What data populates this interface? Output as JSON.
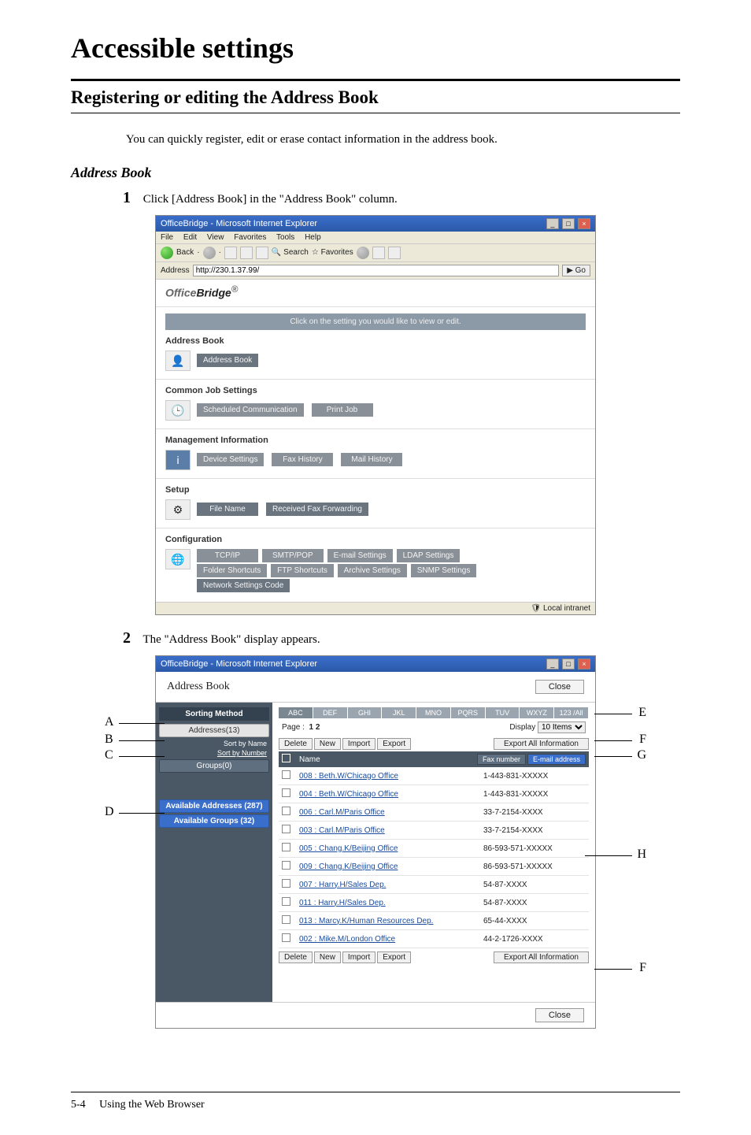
{
  "page": {
    "title": "Accessible settings",
    "subtitle": "Registering or editing the Address Book",
    "intro": "You can quickly register, edit or erase contact information in the address book.",
    "sidehead": "Address Book",
    "step1": "Click [Address Book] in the \"Address Book\" column.",
    "step2": "The \"Address Book\" display appears.",
    "footer_left": "5-4",
    "footer_right": "Using the Web Browser"
  },
  "callouts": {
    "A": "A",
    "B": "B",
    "C": "C",
    "D": "D",
    "E": "E",
    "F": "F",
    "G": "G",
    "H": "H"
  },
  "ss1": {
    "titlebar": "OfficeBridge - Microsoft Internet Explorer",
    "menus": [
      "File",
      "Edit",
      "View",
      "Favorites",
      "Tools",
      "Help"
    ],
    "toolbar": {
      "back": "Back",
      "search": "Search",
      "favorites": "Favorites"
    },
    "address_label": "Address",
    "address_value": "http://230.1.37.99/",
    "go": "Go",
    "logo_a": "Office",
    "logo_b": "Bridge",
    "hint": "Click on the setting you would like to view or edit.",
    "sections": {
      "addr": {
        "title": "Address Book",
        "btn": "Address Book"
      },
      "common": {
        "title": "Common Job Settings",
        "b1": "Scheduled Communication",
        "b2": "Print Job"
      },
      "mgmt": {
        "title": "Management Information",
        "b1": "Device Settings",
        "b2": "Fax History",
        "b3": "Mail History"
      },
      "setup": {
        "title": "Setup",
        "b1": "File Name",
        "b2": "Received Fax Forwarding"
      },
      "config": {
        "title": "Configuration",
        "r1": [
          "TCP/IP",
          "SMTP/POP",
          "E-mail Settings",
          "LDAP Settings"
        ],
        "r2": [
          "Folder Shortcuts",
          "FTP Shortcuts",
          "Archive Settings",
          "SNMP Settings"
        ],
        "r3": [
          "Network Settings Code"
        ]
      }
    },
    "status_right": "Local intranet"
  },
  "ss2": {
    "titlebar": "OfficeBridge - Microsoft Internet Explorer",
    "header": "Address Book",
    "close": "Close",
    "side": {
      "head": "Sorting Method",
      "addresses": "Addresses(13)",
      "sort_name": "Sort by Name",
      "sort_number": "Sort by Number",
      "groups": "Groups(0)",
      "avail_addr": "Available Addresses (287)",
      "avail_grp": "Available Groups (32)"
    },
    "alpha": [
      "ABC",
      "DEF",
      "GHI",
      "JKL",
      "MNO",
      "PQRS",
      "TUV",
      "WXYZ",
      "123 /All"
    ],
    "pager": {
      "page_label": "Page :",
      "pages": "1  2",
      "display_label": "Display",
      "display_value": "10 Items"
    },
    "btns": {
      "delete": "Delete",
      "new": "New",
      "import": "Import",
      "export": "Export",
      "export_all": "Export All Information"
    },
    "table": {
      "name_col": "Name",
      "fax": "Fax number",
      "email": "E-mail address",
      "rows": [
        {
          "n": "008 : Beth.W/Chicago Office",
          "p": "1-443-831-XXXXX"
        },
        {
          "n": "004 : Beth.W/Chicago Office",
          "p": "1-443-831-XXXXX"
        },
        {
          "n": "006 : Carl.M/Paris Office",
          "p": "33-7-2154-XXXX"
        },
        {
          "n": "003 : Carl.M/Paris Office",
          "p": "33-7-2154-XXXX"
        },
        {
          "n": "005 : Chang.K/Beijing Office",
          "p": "86-593-571-XXXXX"
        },
        {
          "n": "009 : Chang.K/Beijing Office",
          "p": "86-593-571-XXXXX"
        },
        {
          "n": "007 : Harry.H/Sales Dep.",
          "p": "54-87-XXXX"
        },
        {
          "n": "011 : Harry.H/Sales Dep.",
          "p": "54-87-XXXX"
        },
        {
          "n": "013 : Marcy.K/Human Resources Dep.",
          "p": "65-44-XXXX"
        },
        {
          "n": "002 : Mike.M/London Office",
          "p": "44-2-1726-XXXX"
        }
      ]
    }
  }
}
